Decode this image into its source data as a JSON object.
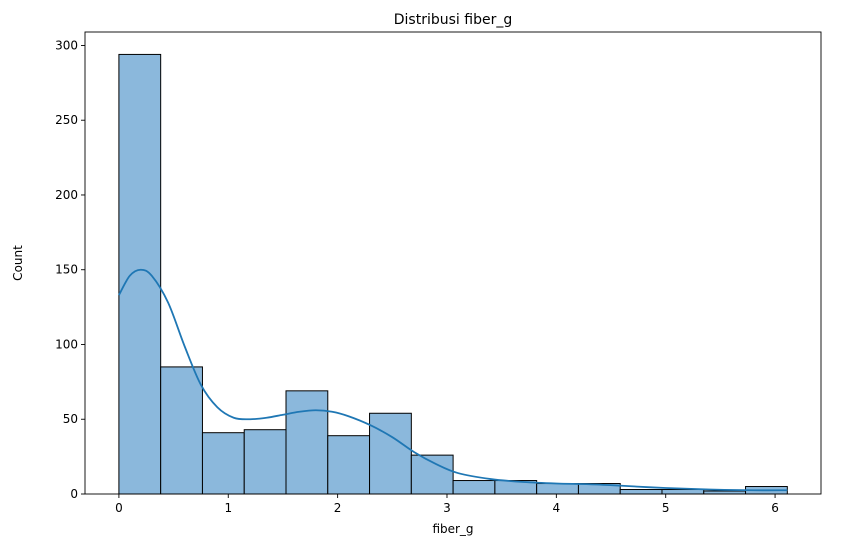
{
  "chart_data": {
    "type": "bar",
    "title": "Distribusi fiber_g",
    "xlabel": "fiber_g",
    "ylabel": "Count",
    "xlim": [
      -0.31,
      6.42
    ],
    "ylim": [
      0,
      309
    ],
    "xticks": [
      0,
      1,
      2,
      3,
      4,
      5,
      6
    ],
    "yticks": [
      0,
      50,
      100,
      150,
      200,
      250,
      300
    ],
    "bin_edges": [
      0,
      0.382,
      0.764,
      1.146,
      1.528,
      1.91,
      2.292,
      2.674,
      3.056,
      3.438,
      3.82,
      4.202,
      4.584,
      4.966,
      5.348,
      5.73,
      6.112
    ],
    "values": [
      294,
      85,
      41,
      43,
      69,
      39,
      54,
      26,
      9,
      9,
      7,
      7,
      3,
      3,
      2,
      5
    ],
    "kde": {
      "x": [
        0,
        0.1,
        0.2,
        0.3,
        0.45,
        0.6,
        0.75,
        0.9,
        1.05,
        1.2,
        1.35,
        1.5,
        1.65,
        1.8,
        1.95,
        2.1,
        2.3,
        2.5,
        2.7,
        2.9,
        3.1,
        3.4,
        3.7,
        4.0,
        4.3,
        4.6,
        5.0,
        5.4,
        5.8,
        6.112
      ],
      "y": [
        133,
        146,
        150,
        146,
        128,
        99,
        73,
        58,
        51,
        50,
        51,
        53,
        55,
        56,
        55,
        52,
        46,
        38,
        28,
        20,
        14,
        10,
        8,
        7,
        6.5,
        5.5,
        4,
        3,
        2.5,
        2.5
      ]
    },
    "bar_color": "#8bb8dc",
    "line_color": "#1f77b4",
    "grid": false
  }
}
